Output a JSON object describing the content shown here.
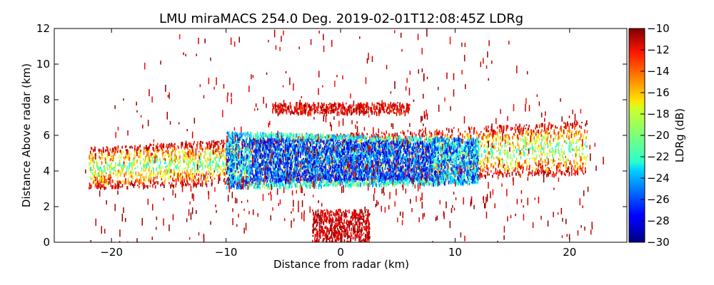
{
  "chart_data": {
    "type": "heatmap",
    "title": "LMU miraMACS 254.0 Deg. 2019-02-01T12:08:45Z  LDRg",
    "xlabel": "Distance from radar (km)",
    "ylabel": "Distance Above radar  (km)",
    "xlim": [
      -25,
      25
    ],
    "ylim": [
      0,
      12
    ],
    "xticks": [
      -20,
      -10,
      0,
      10,
      20
    ],
    "xtick_labels": [
      "−20",
      "−10",
      "0",
      "10",
      "20"
    ],
    "yticks": [
      0,
      2,
      4,
      6,
      8,
      10,
      12
    ],
    "ytick_labels": [
      "0",
      "2",
      "4",
      "6",
      "8",
      "10",
      "12"
    ],
    "grid": false,
    "colorbar": {
      "label": "LDRg (dB)",
      "range": [
        -30,
        -10
      ],
      "colormap": "jet",
      "ticks": [
        -10,
        -12,
        -14,
        -16,
        -18,
        -20,
        -22,
        -24,
        -26,
        -28,
        -30
      ],
      "tick_labels": [
        "−10",
        "−12",
        "−14",
        "−16",
        "−18",
        "−20",
        "−22",
        "−24",
        "−26",
        "−28",
        "−30"
      ]
    },
    "layers": [
      {
        "x_range": [
          -22,
          21.5
        ],
        "height_range_left": [
          3.0,
          5.3
        ],
        "height_range_right": [
          3.8,
          6.8
        ],
        "ldr_db_edge": -12,
        "ldr_db_middle": -20
      },
      {
        "x_range": [
          -10,
          12
        ],
        "height_range_left": [
          3.0,
          6.2
        ],
        "height_range_right": [
          3.3,
          5.8
        ],
        "ldr_db_core": -29
      },
      {
        "x_range": [
          -6,
          6
        ],
        "height_range_left": [
          7.2,
          7.8
        ],
        "height_range_right": [
          7.2,
          7.8
        ],
        "ldr_db_core": -10
      },
      {
        "x_range": [
          -2.5,
          2.5
        ],
        "height_range_left": [
          0,
          1.8
        ],
        "height_range_right": [
          0,
          1.8
        ],
        "ldr_db_core": -10
      }
    ]
  }
}
